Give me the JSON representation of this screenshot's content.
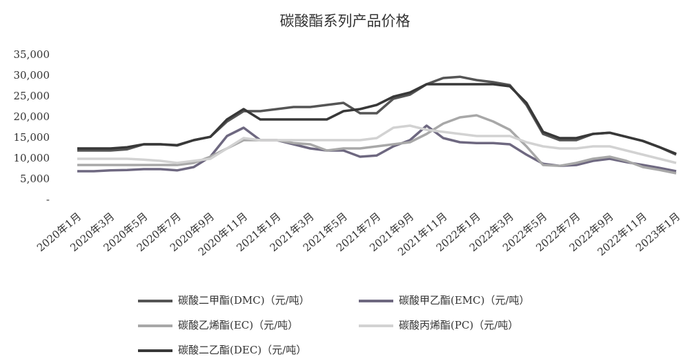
{
  "chart_data": {
    "type": "line",
    "title": "碳酸酯系列产品价格",
    "categories": [
      "2020年1月",
      null,
      "2020年3月",
      null,
      "2020年5月",
      null,
      "2020年7月",
      null,
      "2020年9月",
      null,
      "2020年11月",
      null,
      "2021年1月",
      null,
      "2021年3月",
      null,
      "2021年5月",
      null,
      "2021年7月",
      null,
      "2021年9月",
      null,
      "2021年11月",
      null,
      "2022年1月",
      null,
      "2022年3月",
      null,
      "2022年5月",
      null,
      "2022年7月",
      null,
      "2022年9月",
      null,
      "2022年11月",
      null,
      "2023年1月"
    ],
    "series": [
      {
        "name": "碳酸二甲酯(DMC)（元/吨）",
        "color": "#555555",
        "values": [
          12000,
          12000,
          12000,
          12300,
          13500,
          13500,
          13200,
          14500,
          15300,
          19000,
          21500,
          21500,
          22000,
          22500,
          22500,
          23000,
          23500,
          21000,
          21000,
          24500,
          25500,
          28000,
          29500,
          29800,
          29000,
          28500,
          27800,
          23000,
          16000,
          14500,
          14500,
          16000,
          16300,
          15300,
          14300,
          12800,
          11000
        ]
      },
      {
        "name": "碳酸甲乙酯(EMC)（元/吨）",
        "color": "#6e6880",
        "values": [
          7000,
          7000,
          7200,
          7300,
          7500,
          7500,
          7200,
          8000,
          10500,
          15500,
          17500,
          14500,
          14500,
          13500,
          12500,
          12000,
          12000,
          10500,
          10800,
          13000,
          14500,
          18000,
          15000,
          14000,
          13800,
          13800,
          13500,
          11000,
          8800,
          8300,
          8500,
          9500,
          10000,
          9200,
          8500,
          7800,
          7000
        ]
      },
      {
        "name": "碳酸乙烯酯(EC)（元/吨）",
        "color": "#a8a8a8",
        "values": [
          8500,
          8500,
          8500,
          8500,
          8500,
          8500,
          8500,
          9000,
          10500,
          12500,
          14500,
          14500,
          14500,
          13800,
          13500,
          12000,
          12500,
          12500,
          13000,
          13500,
          14000,
          16000,
          18500,
          20000,
          20500,
          19000,
          17000,
          13000,
          8500,
          8300,
          9000,
          10000,
          10500,
          9500,
          8000,
          7300,
          6500
        ]
      },
      {
        "name": "碳酸丙烯酯(PC)（元/吨）",
        "color": "#d2d2d2",
        "values": [
          10000,
          10000,
          10000,
          10000,
          9800,
          9500,
          9000,
          9500,
          10000,
          12500,
          15000,
          14500,
          14500,
          14500,
          14500,
          14500,
          14500,
          14500,
          15000,
          17500,
          18000,
          17000,
          16500,
          16000,
          15500,
          15500,
          15500,
          14000,
          13000,
          12500,
          12500,
          13000,
          13000,
          12000,
          11000,
          10000,
          9000
        ]
      },
      {
        "name": "碳酸二乙酯(DEC)（元/吨）",
        "color": "#383838",
        "values": [
          12500,
          12500,
          12500,
          12800,
          13500,
          13500,
          13300,
          14500,
          15300,
          19500,
          22000,
          19500,
          19500,
          19500,
          19500,
          19500,
          21500,
          22000,
          23000,
          25000,
          26000,
          28000,
          28000,
          28000,
          28000,
          28000,
          27500,
          23500,
          16500,
          15000,
          15000,
          16000,
          16300,
          15300,
          14300,
          12800,
          11200
        ]
      }
    ],
    "ylim": [
      0,
      35000
    ],
    "yticks": [
      {
        "value": 0,
        "label": "-"
      },
      {
        "value": 5000,
        "label": "5,000"
      },
      {
        "value": 10000,
        "label": "10,000"
      },
      {
        "value": 15000,
        "label": "15,000"
      },
      {
        "value": 20000,
        "label": "20,000"
      },
      {
        "value": 25000,
        "label": "25,000"
      },
      {
        "value": 30000,
        "label": "30,000"
      },
      {
        "value": 35000,
        "label": "35,000"
      }
    ],
    "grid": false
  }
}
